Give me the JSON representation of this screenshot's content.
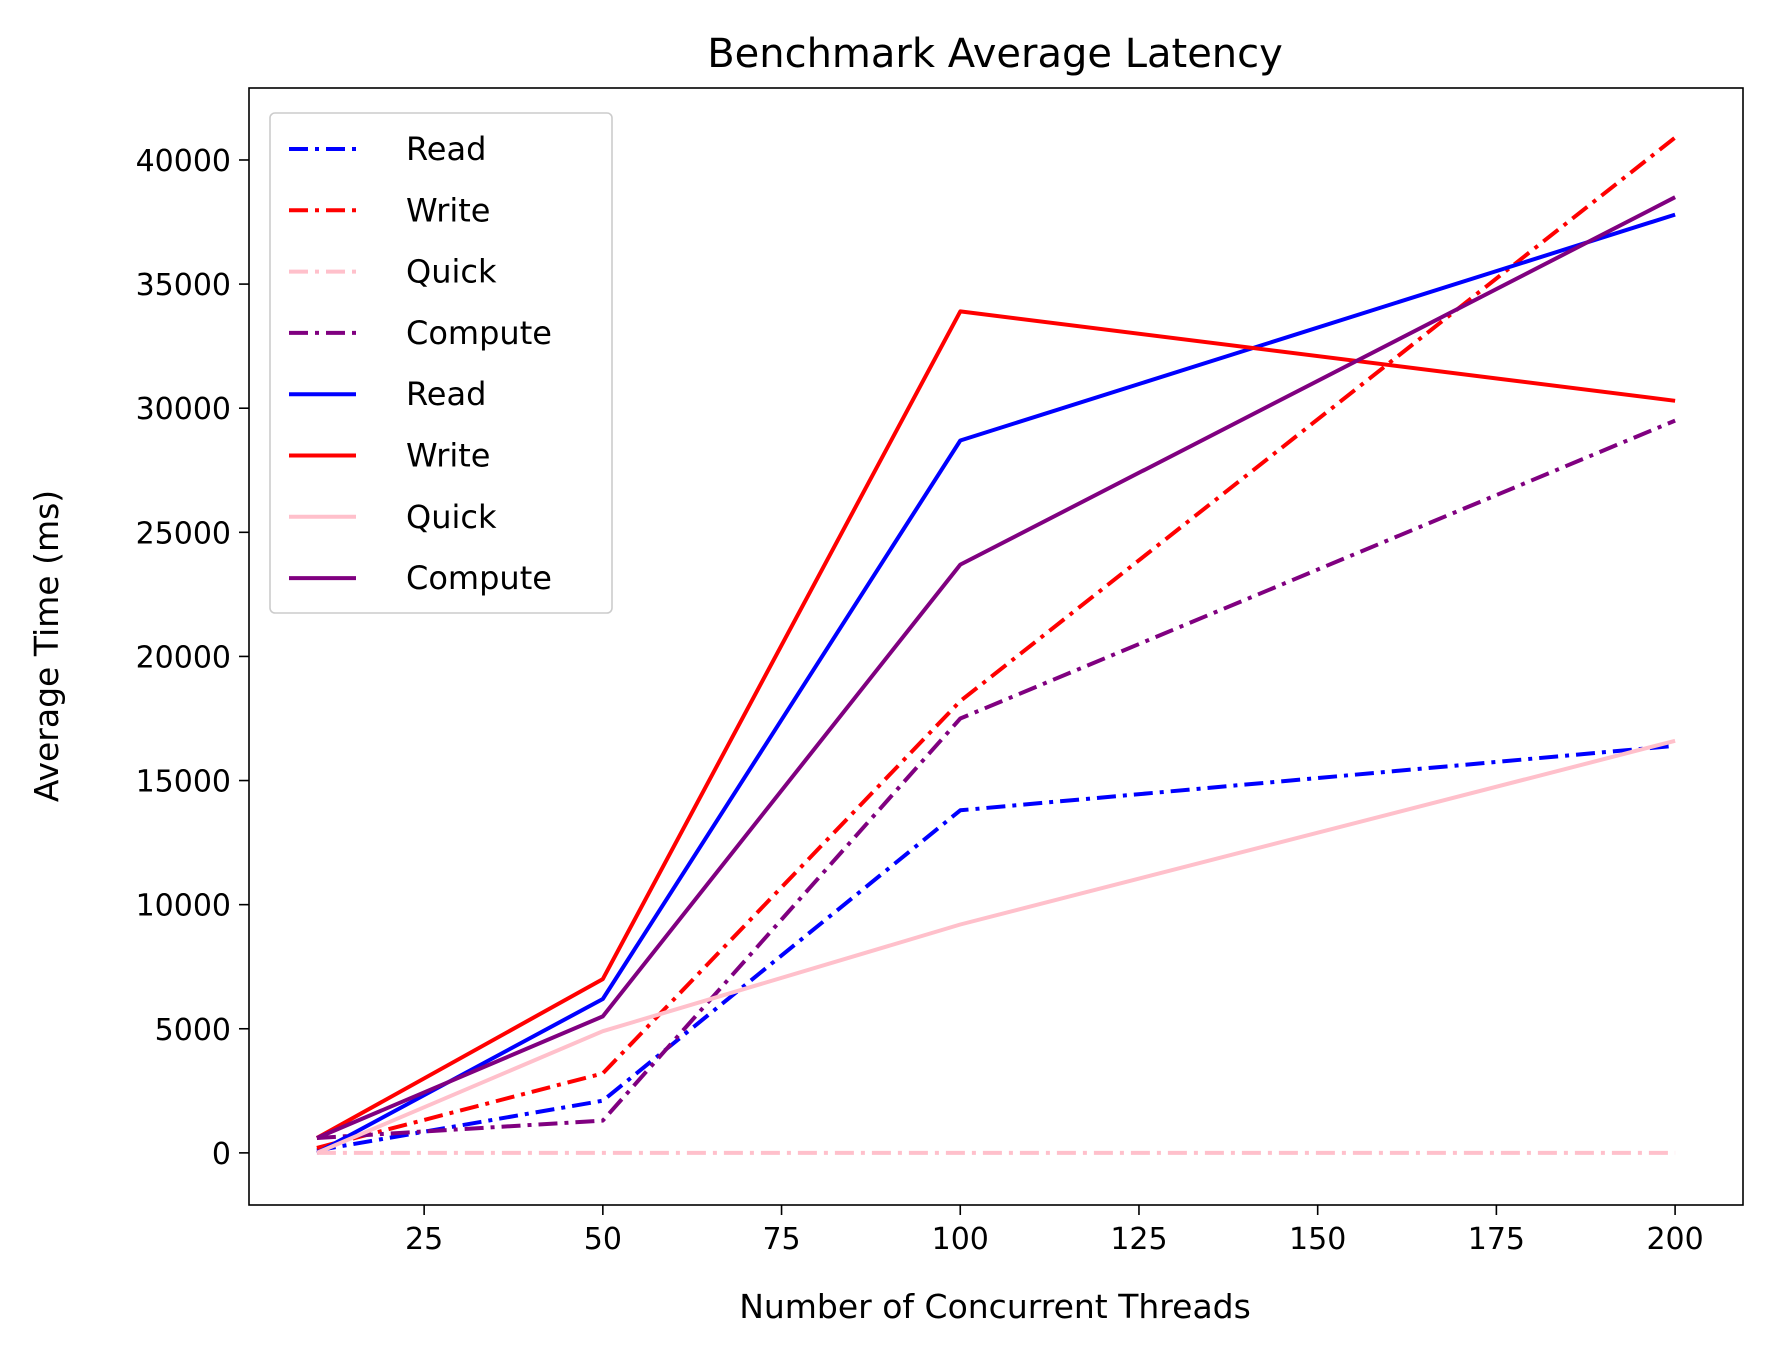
{
  "chart_data": {
    "type": "line",
    "title": "Benchmark Average Latency",
    "xlabel": "Number of Concurrent Threads",
    "ylabel": "Average Time (ms)",
    "xlim": [
      0.5,
      209.5
    ],
    "ylim": [
      -2100,
      42900
    ],
    "xticks": [
      25,
      50,
      75,
      100,
      125,
      150,
      175,
      200
    ],
    "yticks": [
      0,
      5000,
      10000,
      15000,
      20000,
      25000,
      30000,
      35000,
      40000
    ],
    "x": [
      10,
      50,
      100,
      200
    ],
    "grid": false,
    "legend_position": "top-left",
    "series": [
      {
        "name": "Read",
        "color": "#0000ff",
        "style": "dashdot",
        "values": [
          100,
          2100,
          13800,
          16400
        ]
      },
      {
        "name": "Write",
        "color": "#ff0000",
        "style": "dashdot",
        "values": [
          200,
          3200,
          18200,
          40900
        ]
      },
      {
        "name": "Quick",
        "color": "#ffc0cb",
        "style": "dashdot",
        "values": [
          0,
          0,
          0,
          0
        ]
      },
      {
        "name": "Compute",
        "color": "#800080",
        "style": "dashdot",
        "values": [
          600,
          1300,
          17500,
          29500
        ]
      },
      {
        "name": "Read",
        "color": "#0000ff",
        "style": "solid",
        "values": [
          0,
          6200,
          28700,
          37800
        ]
      },
      {
        "name": "Write",
        "color": "#ff0000",
        "style": "solid",
        "values": [
          600,
          7000,
          33900,
          30300
        ]
      },
      {
        "name": "Quick",
        "color": "#ffc0cb",
        "style": "solid",
        "values": [
          0,
          4900,
          9200,
          16600
        ]
      },
      {
        "name": "Compute",
        "color": "#800080",
        "style": "solid",
        "values": [
          600,
          5500,
          23700,
          38500
        ]
      }
    ]
  }
}
